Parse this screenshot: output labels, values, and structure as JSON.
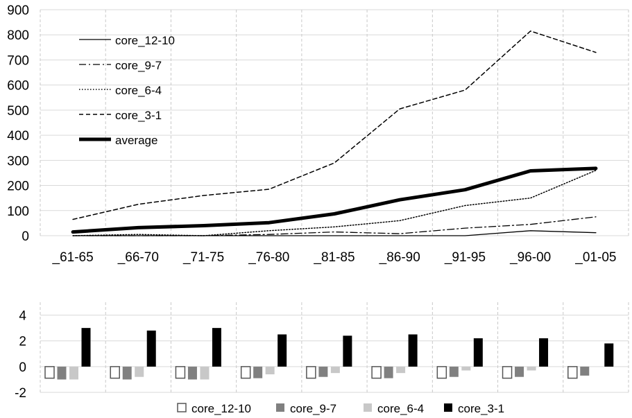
{
  "chart_data": [
    {
      "type": "line",
      "categories": [
        "_61-65",
        "_66-70",
        "_71-75",
        "_76-80",
        "_81-85",
        "_86-90",
        "_91-95",
        "_96-00",
        "_01-05"
      ],
      "ylim": [
        0,
        900
      ],
      "yticks": [
        0,
        100,
        200,
        300,
        400,
        500,
        600,
        700,
        800,
        900
      ],
      "grid": true,
      "legend_position": "top-left",
      "series": [
        {
          "name": "core_12-10",
          "style": "solid-thin",
          "values": [
            0,
            0,
            0,
            0,
            0,
            0,
            0,
            20,
            12
          ]
        },
        {
          "name": "core_9-7",
          "style": "dash-dot",
          "values": [
            0,
            0,
            0,
            5,
            15,
            8,
            30,
            45,
            75
          ]
        },
        {
          "name": "core_6-4",
          "style": "dotted",
          "values": [
            0,
            5,
            0,
            20,
            35,
            60,
            120,
            150,
            260
          ]
        },
        {
          "name": "core_3-1",
          "style": "dashed",
          "values": [
            65,
            125,
            160,
            185,
            290,
            505,
            580,
            815,
            730
          ]
        },
        {
          "name": "average",
          "style": "solid-thick",
          "values": [
            15,
            32,
            40,
            52,
            87,
            143,
            183,
            258,
            268
          ]
        }
      ]
    },
    {
      "type": "bar",
      "categories": [
        "_61-65",
        "_66-70",
        "_71-75",
        "_76-80",
        "_81-85",
        "_86-90",
        "_91-95",
        "_96-00",
        "_01-05"
      ],
      "ylim": [
        -2,
        5
      ],
      "yticks": [
        -2,
        0,
        2,
        4
      ],
      "grid": true,
      "legend_position": "bottom-center",
      "series": [
        {
          "name": "core_12-10",
          "color": "#ffffff",
          "values": [
            -0.9,
            -0.9,
            -0.9,
            -0.9,
            -0.9,
            -0.9,
            -0.9,
            -0.9,
            -0.9
          ]
        },
        {
          "name": "core_9-7",
          "color": "#808080",
          "values": [
            -1.0,
            -1.0,
            -1.0,
            -0.9,
            -0.8,
            -0.9,
            -0.8,
            -0.8,
            -0.7
          ]
        },
        {
          "name": "core_6-4",
          "color": "#c8c8c8",
          "values": [
            -1.0,
            -0.8,
            -1.0,
            -0.6,
            -0.5,
            -0.5,
            -0.3,
            -0.3,
            0
          ]
        },
        {
          "name": "core_3-1",
          "color": "#000000",
          "values": [
            3.0,
            2.8,
            3.0,
            2.5,
            2.4,
            2.5,
            2.2,
            2.2,
            1.8
          ]
        }
      ]
    }
  ]
}
